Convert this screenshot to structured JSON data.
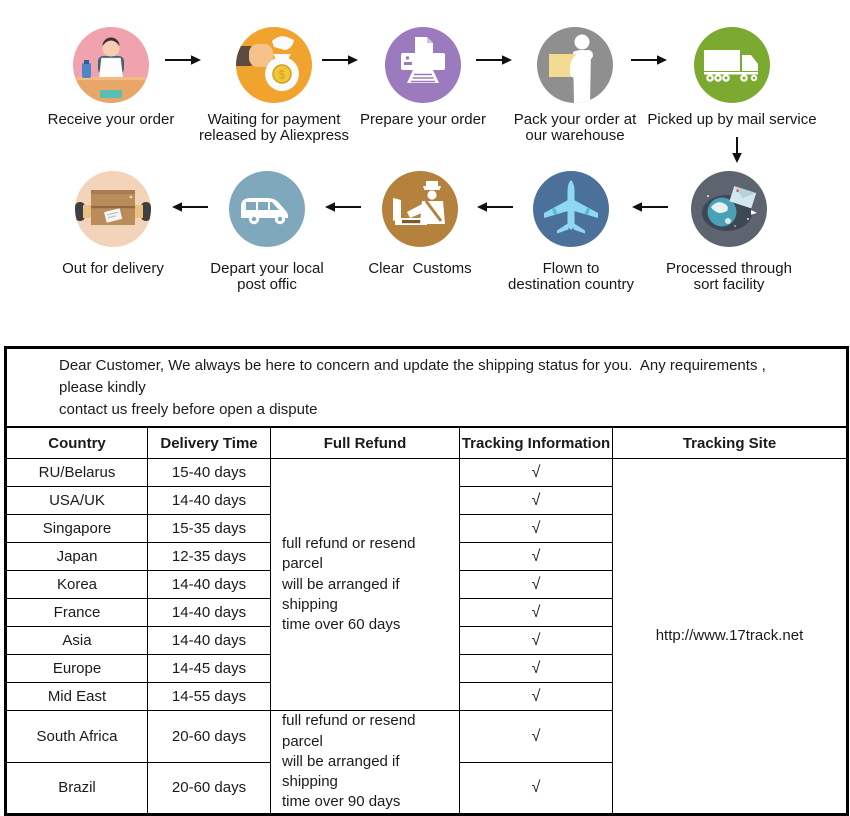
{
  "flow": {
    "row1": [
      {
        "label": "Receive your order",
        "icon": "person-at-desk-icon",
        "color": "#f0a2ae"
      },
      {
        "label": "Waiting for payment\nreleased by Aliexpress",
        "icon": "money-bag-icon",
        "color": "#f0a42e"
      },
      {
        "label": "Prepare your order",
        "icon": "printer-icon",
        "color": "#9b7abe"
      },
      {
        "label": "Pack your order at\nour warehouse",
        "icon": "pack-box-icon",
        "color": "#8f8f8f"
      },
      {
        "label": "Picked up by mail service",
        "icon": "truck-icon",
        "color": "#7caa31"
      }
    ],
    "row2": [
      {
        "label": "Out for delivery",
        "icon": "delivery-box-icon",
        "color": "#f3d4ba"
      },
      {
        "label": "Depart your local\npost offic",
        "icon": "post-van-icon",
        "color": "#80a8bd"
      },
      {
        "label": "Clear  Customs",
        "icon": "customs-officer-icon",
        "color": "#b5823e"
      },
      {
        "label": "Flown to\ndestination country",
        "icon": "airplane-icon",
        "color": "#4b7099"
      },
      {
        "label": "Processed through\nsort facility",
        "icon": "globe-parcel-icon",
        "color": "#5d6470"
      }
    ]
  },
  "table": {
    "notice": "Dear Customer, We always be here to concern and update the shipping status for you.  Any requirements , please kindly\ncontact us freely before open a dispute",
    "headers": [
      "Country",
      "Delivery Time",
      "Full Refund",
      "Tracking Information",
      "Tracking Site"
    ],
    "rows": [
      {
        "country": "RU/Belarus",
        "delivery_time": "15-40 days",
        "tracking": "√"
      },
      {
        "country": "USA/UK",
        "delivery_time": "14-40 days",
        "tracking": "√"
      },
      {
        "country": "Singapore",
        "delivery_time": "15-35 days",
        "tracking": "√"
      },
      {
        "country": "Japan",
        "delivery_time": "12-35 days",
        "tracking": "√"
      },
      {
        "country": "Korea",
        "delivery_time": "14-40 days",
        "tracking": "√"
      },
      {
        "country": "France",
        "delivery_time": "14-40 days",
        "tracking": "√"
      },
      {
        "country": "Asia",
        "delivery_time": "14-40 days",
        "tracking": "√"
      },
      {
        "country": "Europe",
        "delivery_time": "14-45 days",
        "tracking": "√"
      },
      {
        "country": "Mid East",
        "delivery_time": "14-55 days",
        "tracking": "√"
      },
      {
        "country": "South Africa",
        "delivery_time": "20-60 days",
        "tracking": "√"
      },
      {
        "country": "Brazil",
        "delivery_time": "20-60 days",
        "tracking": "√"
      }
    ],
    "refund_groups": [
      {
        "text": "full refund or resend parcel\nwill be arranged if shipping\ntime over 60 days",
        "rows": 9
      },
      {
        "text": "full refund or resend parcel\nwill be arranged if shipping\ntime over 90 days",
        "rows": 2
      }
    ],
    "tracking_site": "http://www.17track.net"
  }
}
